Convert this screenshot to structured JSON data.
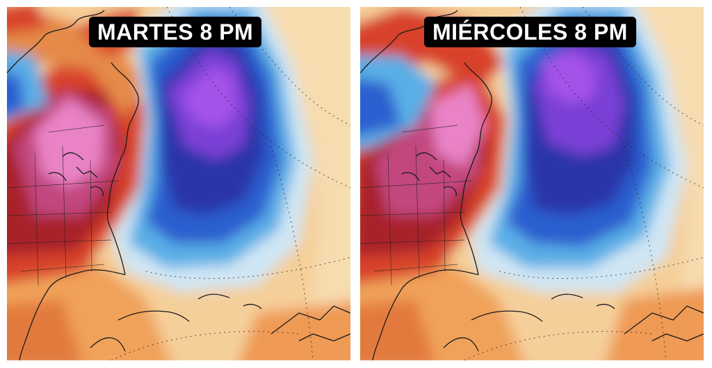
{
  "panels": [
    {
      "title": "MARTES 8 PM"
    },
    {
      "title": "MIÉRCOLES 8 PM"
    }
  ],
  "palette": {
    "warm_outer": "#f7d9a8",
    "orange": "#f0a25a",
    "red": "#d8432c",
    "dark_red": "#a8202a",
    "magenta": "#c2477e",
    "pink": "#e983c6",
    "cold_light": "#cfe6f4",
    "cyan": "#5aaee6",
    "blue": "#2c5fcf",
    "navy": "#2a36a8",
    "purple": "#7a3fd6",
    "violet": "#a452e8"
  },
  "map_features": [
    "north-america-coastline",
    "us-state-borders",
    "great-lakes",
    "caribbean-islands",
    "lat-lon-graticule"
  ]
}
